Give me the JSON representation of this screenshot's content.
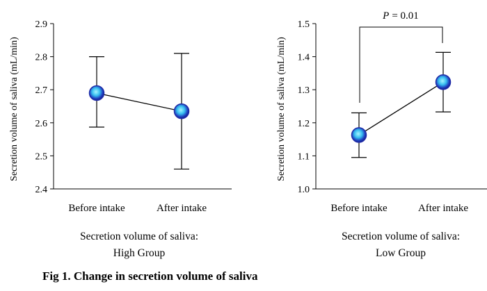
{
  "caption": "Fig 1. Change in secretion volume of saliva",
  "colors": {
    "marker_center": "#7fe6ff",
    "marker_edge": "#1f2aa6",
    "line": "#000000"
  },
  "chart_data": [
    {
      "type": "line",
      "categories": [
        "Before intake",
        "After intake"
      ],
      "series": [
        {
          "values": [
            2.69,
            2.635
          ]
        }
      ],
      "error_bars": {
        "upper": [
          2.8,
          2.81
        ],
        "lower": [
          2.587,
          2.46
        ]
      },
      "ylabel": "Secretion volume of saliva (mL/min)",
      "ylim": [
        2.4,
        2.9
      ],
      "yticks": [
        "2.4",
        "2.5",
        "2.6",
        "2.7",
        "2.8",
        "2.9"
      ],
      "description": [
        "Secretion volume of saliva:",
        "High Group"
      ],
      "grid": false
    },
    {
      "type": "line",
      "categories": [
        "Before intake",
        "After intake"
      ],
      "series": [
        {
          "values": [
            1.163,
            1.323
          ]
        }
      ],
      "error_bars": {
        "upper": [
          1.23,
          1.413
        ],
        "lower": [
          1.095,
          1.233
        ]
      },
      "ylabel": "Secretion volume of saliva (mL/min)",
      "ylim": [
        1.0,
        1.5
      ],
      "yticks": [
        "1.0",
        "1.1",
        "1.2",
        "1.3",
        "1.4",
        "1.5"
      ],
      "description": [
        "Secretion volume of saliva:",
        "Low Group"
      ],
      "annotation": {
        "p_symbol": "P",
        "p_text": "= 0.01"
      },
      "grid": false
    }
  ]
}
